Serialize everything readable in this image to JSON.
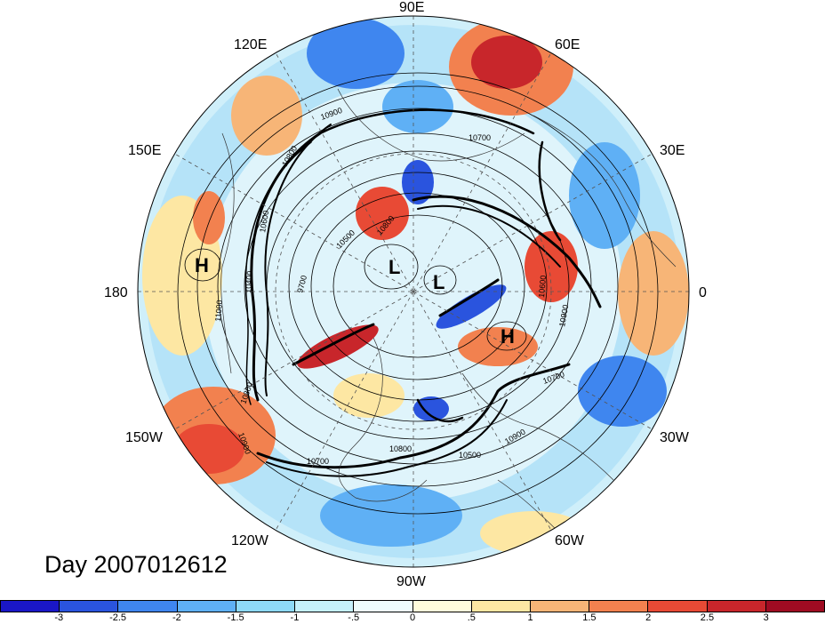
{
  "map": {
    "projection": "polar-stereographic",
    "hemisphere": "north",
    "longitude_labels": [
      "90E",
      "60E",
      "30E",
      "0",
      "30W",
      "60W",
      "90W",
      "120W",
      "150W",
      "180",
      "150E",
      "120E"
    ],
    "pressure_centers": [
      {
        "name": "H",
        "region": "north-pacific"
      },
      {
        "name": "L",
        "region": "arctic-east-siberia"
      },
      {
        "name": "L",
        "region": "arctic-near-pole"
      },
      {
        "name": "H",
        "region": "north-atlantic"
      }
    ],
    "contour_labels": [
      "10900",
      "10700",
      "10800",
      "10600",
      "10500",
      "10400",
      "9700",
      "11000",
      "10800",
      "10900",
      "10700",
      "10800",
      "10500",
      "10900",
      "10700",
      "10900",
      "10600",
      "10800"
    ]
  },
  "date_label": "Day 2007012612",
  "colorbar": {
    "colors": [
      "#1a17c7",
      "#2a54de",
      "#3f86ef",
      "#5fb0f5",
      "#8ed9f8",
      "#c5f0fb",
      "#eefcfd",
      "#fffcdc",
      "#fde7a3",
      "#f7b577",
      "#f2814f",
      "#e84a35",
      "#c8262b",
      "#9f0b22"
    ],
    "tick_labels": [
      "-3",
      "-2.5",
      "-2",
      "-1.5",
      "-1",
      "-.5",
      "0",
      ".5",
      "1",
      "1.5",
      "2",
      "2.5",
      "3"
    ]
  }
}
